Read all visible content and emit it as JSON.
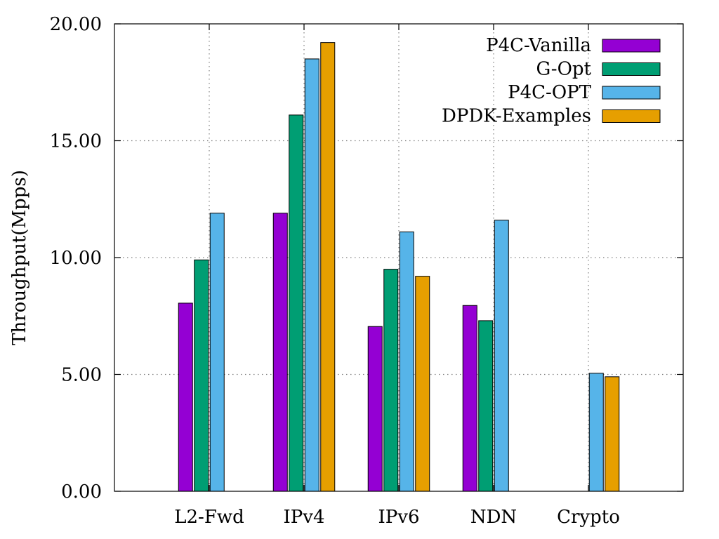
{
  "chart_data": {
    "type": "bar",
    "ylabel": "Throughput(Mpps)",
    "xlabel": "",
    "ylim": [
      0,
      20
    ],
    "yticks": [
      "0.00",
      "5.00",
      "10.00",
      "15.00",
      "20.00"
    ],
    "grid": true,
    "legend_position": "top-right",
    "categories": [
      "L2-Fwd",
      "IPv4",
      "IPv6",
      "NDN",
      "Crypto"
    ],
    "series": [
      {
        "name": "P4C-Vanilla",
        "color": "#9400d3",
        "values": [
          8.05,
          11.9,
          7.05,
          7.95,
          null
        ]
      },
      {
        "name": "G-Opt",
        "color": "#009e73",
        "values": [
          9.9,
          16.1,
          9.5,
          7.3,
          null
        ]
      },
      {
        "name": "P4C-OPT",
        "color": "#56b4e9",
        "values": [
          11.9,
          18.5,
          11.1,
          11.6,
          5.05
        ]
      },
      {
        "name": "DPDK-Examples",
        "color": "#e69f00",
        "values": [
          null,
          19.2,
          9.2,
          null,
          4.9
        ]
      }
    ]
  }
}
